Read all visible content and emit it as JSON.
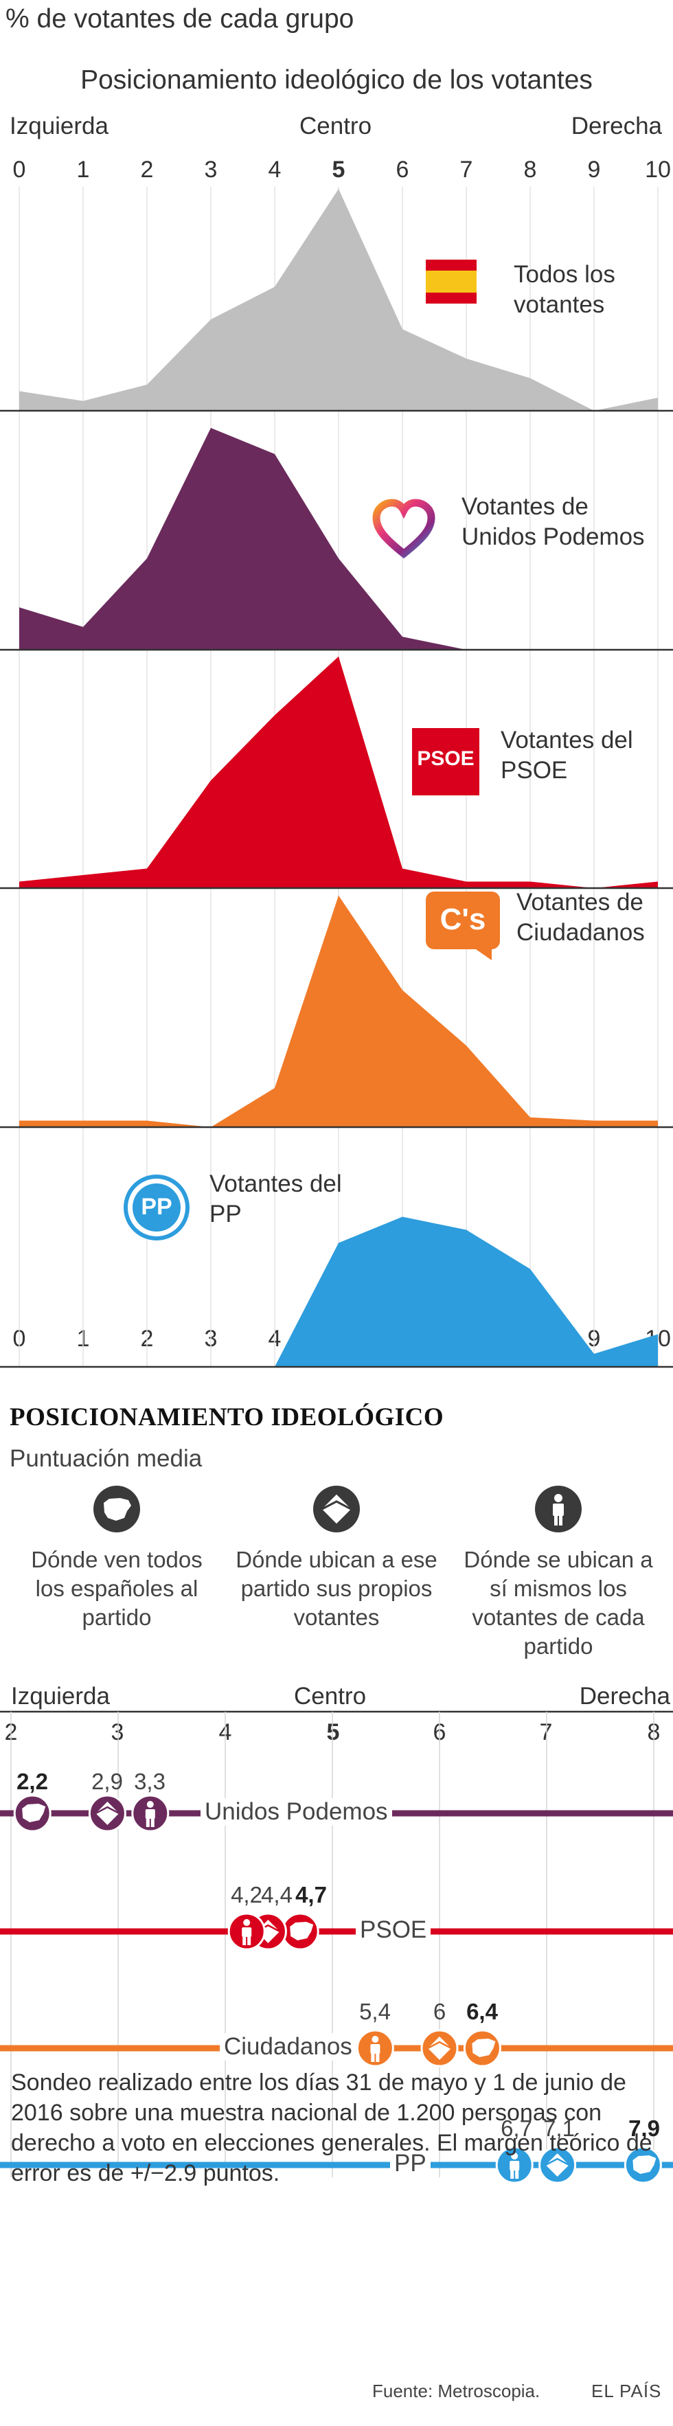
{
  "heading": "% de votantes de cada grupo",
  "chart_data": [
    {
      "type": "area",
      "title": "Posicionamiento ideológico de los votantes",
      "axis_labels": {
        "left": "Izquierda",
        "center": "Centro",
        "right": "Derecha"
      },
      "x": [
        0,
        1,
        2,
        3,
        4,
        5,
        6,
        7,
        8,
        9,
        10
      ],
      "x_tick_labels": [
        "0",
        "1",
        "2",
        "3",
        "4",
        "5",
        "6",
        "7",
        "8",
        "9",
        "10"
      ],
      "bold_tick": "5",
      "series": [
        {
          "name": "Todos los votantes",
          "color": "#bfbfbf",
          "icon": "spain-flag-icon",
          "values": [
            3,
            1.5,
            4,
            14,
            19,
            34,
            12.5,
            8,
            5,
            0,
            2
          ]
        },
        {
          "name": "Votantes de Unidos Podemos",
          "color": "#6b2a5c",
          "icon": "podemos-heart-icon",
          "values": [
            6.5,
            3.5,
            14,
            34,
            30,
            14,
            2,
            0,
            0,
            0,
            0
          ]
        },
        {
          "name": "Votantes del PSOE",
          "color": "#d8001c",
          "icon": "psoe-logo",
          "values": [
            1,
            2,
            3,
            16.5,
            26.5,
            35.5,
            3,
            1,
            1,
            0,
            1
          ]
        },
        {
          "name": "Votantes de Ciudadanos",
          "color": "#f07a28",
          "icon": "ciudadanos-logo",
          "values": [
            1,
            1,
            1,
            0,
            6,
            35.5,
            21,
            12.5,
            1.5,
            1,
            1
          ]
        },
        {
          "name": "Votantes del PP",
          "color": "#2d9ddd",
          "icon": "pp-logo",
          "values": [
            0,
            0,
            0,
            0,
            0,
            19,
            23,
            21,
            15,
            2,
            5
          ]
        }
      ],
      "ylim": [
        0,
        38
      ]
    },
    {
      "type": "scatter",
      "title": "POSICIONAMIENTO IDEOLÓGICO",
      "subtitle": "Puntuación media",
      "axis_labels": {
        "left": "Izquierda",
        "center": "Centro",
        "right": "Derecha"
      },
      "x_tick_labels": [
        "2",
        "3",
        "4",
        "5",
        "6",
        "7",
        "8"
      ],
      "bold_tick": "5",
      "xlim": [
        2,
        8
      ],
      "legend": [
        {
          "icon": "spain-map-icon",
          "text": "Dónde ven todos los españoles al partido"
        },
        {
          "icon": "envelope-icon",
          "text": "Dónde ubican a ese partido sus propios votantes"
        },
        {
          "icon": "person-icon",
          "text": "Dónde se ubican a sí mismos los votantes de cada partido"
        }
      ],
      "series": [
        {
          "name": "Unidos Podemos",
          "color": "#6b2a5c",
          "espanoles": 2.2,
          "propios": 2.9,
          "si_mismos": 3.3,
          "labels": {
            "espanoles": "2,2",
            "propios": "2,9",
            "si_mismos": "3,3"
          }
        },
        {
          "name": "PSOE",
          "color": "#d8001c",
          "espanoles": 4.7,
          "propios": 4.4,
          "si_mismos": 4.2,
          "labels": {
            "espanoles": "4,7",
            "propios": "4,4",
            "si_mismos": "4,2"
          }
        },
        {
          "name": "Ciudadanos",
          "color": "#f07a28",
          "espanoles": 6.4,
          "propios": 6.0,
          "si_mismos": 5.4,
          "labels": {
            "espanoles": "6,4",
            "propios": "6",
            "si_mismos": "5,4"
          }
        },
        {
          "name": "PP",
          "color": "#2d9ddd",
          "espanoles": 7.9,
          "propios": 7.1,
          "si_mismos": 6.7,
          "labels": {
            "espanoles": "7,9",
            "propios": "7,1",
            "si_mismos": "6,7"
          }
        }
      ]
    }
  ],
  "footnote": "Sondeo realizado entre los días 31 de mayo y 1 de junio de 2016 sobre una muestra nacional de 1.200 personas con derecho a voto en elecciones generales. El margen teórico de error es de +/−2.9 puntos.",
  "source": "Fuente: Metroscopia.",
  "brand": "EL PAÍS",
  "psoe_logo_text": "PSOE",
  "cs_logo_text": "C's",
  "pp_logo_text": "PP"
}
